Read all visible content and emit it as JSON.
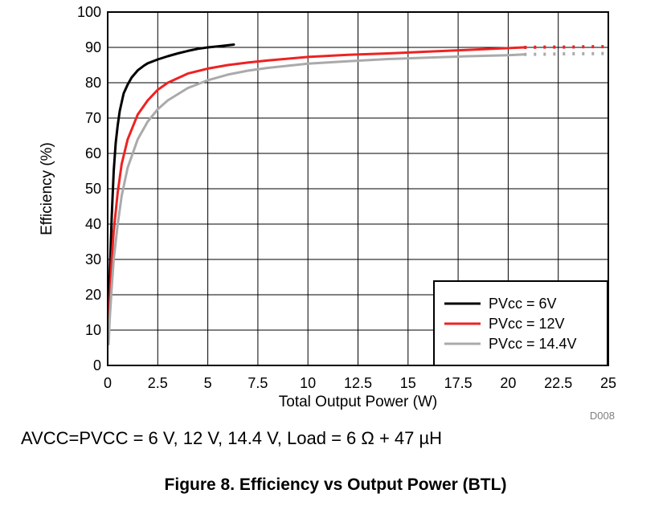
{
  "chart_data": {
    "type": "line",
    "xlabel": "Total Output Power (W)",
    "ylabel": "Efficiency (%)",
    "xlim": [
      0,
      25
    ],
    "ylim": [
      0,
      100
    ],
    "xticks": [
      "0",
      "2.5",
      "5",
      "7.5",
      "10",
      "12.5",
      "15",
      "17.5",
      "20",
      "22.5",
      "25"
    ],
    "yticks": [
      "0",
      "10",
      "20",
      "30",
      "40",
      "50",
      "60",
      "70",
      "80",
      "90",
      "100"
    ],
    "grid": true,
    "legend_position": "bottom-right",
    "code": "D008",
    "series": [
      {
        "name": "PVcc = 6V",
        "color": "#000000",
        "x": [
          0.05,
          0.1,
          0.2,
          0.3,
          0.4,
          0.5,
          0.6,
          0.8,
          1.0,
          1.2,
          1.5,
          1.8,
          2.0,
          2.5,
          3.0,
          3.5,
          4.0,
          4.5,
          5.0,
          5.5,
          6.0,
          6.3
        ],
        "y": [
          10,
          25,
          42,
          55,
          63,
          68,
          72,
          77,
          79.5,
          81.5,
          83.5,
          84.8,
          85.5,
          86.6,
          87.5,
          88.3,
          89.0,
          89.6,
          90.0,
          90.3,
          90.6,
          90.8
        ]
      },
      {
        "name": "PVcc = 12V",
        "color": "#ee2222",
        "x": [
          0.05,
          0.1,
          0.2,
          0.3,
          0.5,
          0.7,
          1.0,
          1.5,
          2.0,
          2.5,
          3.0,
          4.0,
          5.0,
          6.0,
          7.0,
          8.0,
          10.0,
          12.0,
          14.0,
          16.0,
          18.0,
          20.0,
          20.8
        ],
        "y": [
          8,
          18,
          30,
          38,
          49,
          57,
          64,
          71,
          75,
          78,
          80,
          82.6,
          84,
          85,
          85.7,
          86.3,
          87.3,
          87.9,
          88.3,
          88.8,
          89.3,
          89.8,
          90.0
        ],
        "extension": {
          "x": [
            20.8,
            22.0,
            23.0,
            24.0,
            25.0
          ],
          "y": [
            90.0,
            90.1,
            90.1,
            90.2,
            90.2
          ]
        }
      },
      {
        "name": "PVcc = 14.4V",
        "color": "#aaaaaa",
        "x": [
          0.05,
          0.1,
          0.2,
          0.3,
          0.5,
          0.7,
          1.0,
          1.5,
          2.0,
          2.5,
          3.0,
          4.0,
          5.0,
          6.0,
          7.0,
          8.0,
          10.0,
          12.0,
          14.0,
          16.0,
          18.0,
          20.0,
          20.8
        ],
        "y": [
          6,
          13,
          22,
          30,
          40,
          48,
          56,
          64,
          69,
          72.5,
          75,
          78.5,
          80.7,
          82.3,
          83.4,
          84.2,
          85.4,
          86.1,
          86.7,
          87.1,
          87.5,
          87.8,
          88.0
        ],
        "extension": {
          "x": [
            20.8,
            22.0,
            23.0,
            24.0,
            25.0
          ],
          "y": [
            88.0,
            88.1,
            88.2,
            88.2,
            88.3
          ]
        }
      }
    ]
  },
  "condition_text": "AVCC=PVCC = 6 V, 12 V, 14.4 V, Load = 6 Ω + 47 µH",
  "figure_title": "Figure 8. Efficiency vs Output Power (BTL)"
}
